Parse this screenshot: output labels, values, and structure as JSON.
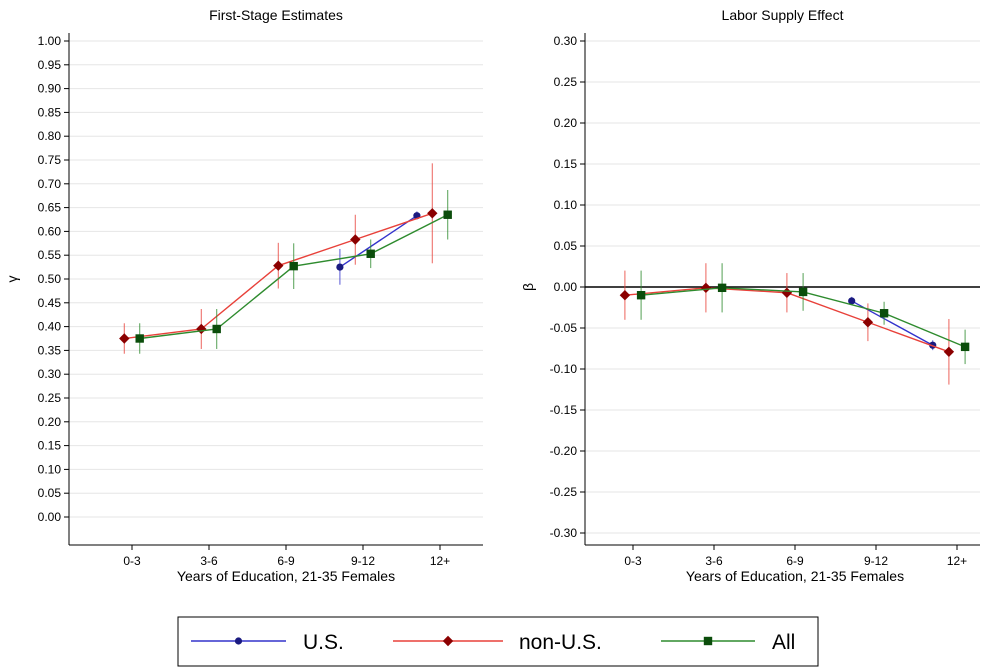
{
  "chart_data": [
    {
      "type": "line",
      "title": "First-Stage Estimates",
      "xlabel": "Years of Education, 21-35 Females",
      "ylabel": "γ",
      "ylim": [
        0.0,
        1.0
      ],
      "yticks": [
        "0.00",
        "0.05",
        "0.10",
        "0.15",
        "0.20",
        "0.25",
        "0.30",
        "0.35",
        "0.40",
        "0.45",
        "0.50",
        "0.55",
        "0.60",
        "0.65",
        "0.70",
        "0.75",
        "0.80",
        "0.85",
        "0.90",
        "0.95",
        "1.00"
      ],
      "categories": [
        "0-3",
        "3-6",
        "6-9",
        "9-12",
        "12+"
      ],
      "grid": true,
      "zero_line": false,
      "series": [
        {
          "name": "U.S.",
          "color": "#3333cc",
          "marker": "circle",
          "marker_color": "#1a1a80",
          "offset": -0.3,
          "values": [
            null,
            null,
            null,
            0.525,
            0.633
          ],
          "lower": [
            null,
            null,
            null,
            0.488,
            0.625
          ],
          "upper": [
            null,
            null,
            null,
            0.563,
            0.642
          ]
        },
        {
          "name": "non-U.S.",
          "color": "#e8413a",
          "marker": "diamond",
          "marker_color": "#8b0000",
          "offset": -0.1,
          "values": [
            0.375,
            0.395,
            0.528,
            0.583,
            0.638
          ],
          "lower": [
            0.343,
            0.353,
            0.48,
            0.53,
            0.533
          ],
          "upper": [
            0.407,
            0.437,
            0.576,
            0.635,
            0.743
          ]
        },
        {
          "name": "All",
          "color": "#2e8b2e",
          "marker": "square",
          "marker_color": "#0b4d0b",
          "offset": 0.1,
          "values": [
            0.375,
            0.395,
            0.527,
            0.553,
            0.635
          ],
          "lower": [
            0.343,
            0.353,
            0.479,
            0.523,
            0.583
          ],
          "upper": [
            0.407,
            0.437,
            0.575,
            0.583,
            0.687
          ]
        }
      ]
    },
    {
      "type": "line",
      "title": "Labor Supply Effect",
      "xlabel": "Years of Education, 21-35 Females",
      "ylabel": "β",
      "ylim": [
        -0.3,
        0.3
      ],
      "yticks": [
        "-0.30",
        "-0.25",
        "-0.20",
        "-0.15",
        "-0.10",
        "-0.05",
        "0.00",
        "0.05",
        "0.10",
        "0.15",
        "0.20",
        "0.25",
        "0.30"
      ],
      "categories": [
        "0-3",
        "3-6",
        "6-9",
        "9-12",
        "12+"
      ],
      "grid": true,
      "zero_line": true,
      "series": [
        {
          "name": "U.S.",
          "color": "#3333cc",
          "marker": "circle",
          "marker_color": "#1a1a80",
          "offset": -0.3,
          "values": [
            null,
            null,
            null,
            -0.017,
            -0.071
          ],
          "lower": [
            null,
            null,
            null,
            -0.022,
            -0.077
          ],
          "upper": [
            null,
            null,
            null,
            -0.012,
            -0.065
          ]
        },
        {
          "name": "non-U.S.",
          "color": "#e8413a",
          "marker": "diamond",
          "marker_color": "#8b0000",
          "offset": -0.1,
          "values": [
            -0.01,
            -0.001,
            -0.007,
            -0.043,
            -0.079
          ],
          "lower": [
            -0.04,
            -0.031,
            -0.031,
            -0.066,
            -0.119
          ],
          "upper": [
            0.02,
            0.029,
            0.017,
            -0.02,
            -0.039
          ]
        },
        {
          "name": "All",
          "color": "#2e8b2e",
          "marker": "square",
          "marker_color": "#0b4d0b",
          "offset": 0.1,
          "values": [
            -0.01,
            -0.001,
            -0.006,
            -0.032,
            -0.073
          ],
          "lower": [
            -0.04,
            -0.031,
            -0.029,
            -0.046,
            -0.094
          ],
          "upper": [
            0.02,
            0.029,
            0.017,
            -0.018,
            -0.052
          ]
        }
      ]
    }
  ],
  "legend": {
    "placement": "bottom",
    "items": [
      {
        "label": "U.S.",
        "color": "#3333cc",
        "marker": "circle",
        "marker_color": "#1a1a80"
      },
      {
        "label": "non-U.S.",
        "color": "#e8413a",
        "marker": "diamond",
        "marker_color": "#8b0000"
      },
      {
        "label": "All",
        "color": "#2e8b2e",
        "marker": "square",
        "marker_color": "#0b4d0b"
      }
    ]
  }
}
